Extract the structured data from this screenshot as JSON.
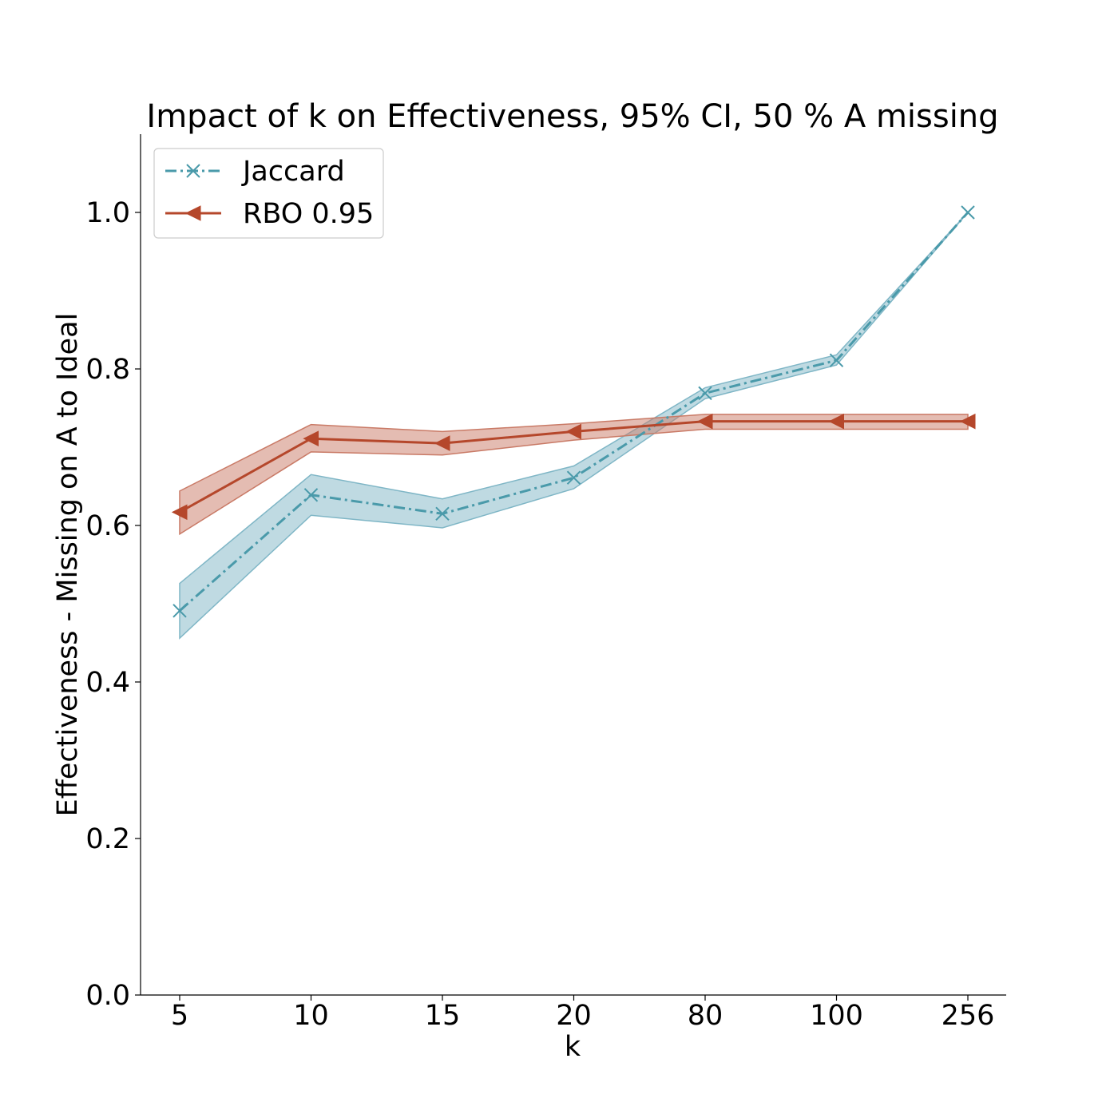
{
  "chart_data": {
    "type": "line",
    "title": "Impact of k on Effectiveness, 95% CI, 50 % A missing",
    "xlabel": "k",
    "ylabel": "Effectiveness - Missing on A to Ideal",
    "categories": [
      "5",
      "10",
      "15",
      "20",
      "80",
      "100",
      "256"
    ],
    "ylim": [
      0.0,
      1.1
    ],
    "yticks": [
      "0.0",
      "0.2",
      "0.4",
      "0.6",
      "0.8",
      "1.0"
    ],
    "grid": false,
    "legend_position": "upper-left",
    "series": [
      {
        "name": "Jaccard",
        "color": "#4a9aaa",
        "fill_color": "#7fb6c6",
        "line_style": "dashdot",
        "marker": "x",
        "values": [
          0.491,
          0.639,
          0.615,
          0.661,
          0.769,
          0.811,
          1.0
        ],
        "ci_lower": [
          0.456,
          0.613,
          0.597,
          0.647,
          0.762,
          0.805,
          1.0
        ],
        "ci_upper": [
          0.526,
          0.665,
          0.634,
          0.676,
          0.776,
          0.818,
          1.0
        ]
      },
      {
        "name": "RBO 0.95",
        "color": "#b5472b",
        "fill_color": "#c97a66",
        "line_style": "solid",
        "marker": "triangle-left",
        "values": [
          0.617,
          0.711,
          0.705,
          0.72,
          0.733,
          0.733,
          0.733
        ],
        "ci_lower": [
          0.589,
          0.694,
          0.69,
          0.709,
          0.723,
          0.723,
          0.723
        ],
        "ci_upper": [
          0.644,
          0.729,
          0.72,
          0.73,
          0.742,
          0.742,
          0.742
        ]
      }
    ]
  }
}
